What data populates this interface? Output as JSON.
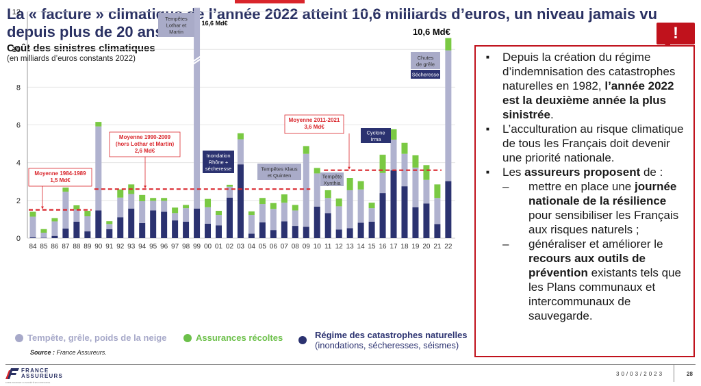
{
  "header": {
    "title": "La « facture » climatique de l’année 2022 atteint 10,6 milliards d’euros, un niveau jamais vu depuis plus de 20 ans…"
  },
  "chart_meta": {
    "subtitle": "Coût des sinistres climatiques",
    "unit": "(en milliards d’euros constants 2022)",
    "source_label": "Source :",
    "source_text": " France Assureurs."
  },
  "chart_data": {
    "type": "bar",
    "stacked": true,
    "title": "Coût des sinistres climatiques",
    "subtitle": "(en milliards d’euros constants 2022)",
    "xlabel": "",
    "ylabel": "",
    "ylim": [
      0,
      12
    ],
    "yticks": [
      0,
      2,
      4,
      6,
      8,
      10,
      12
    ],
    "grid": true,
    "legend_position": "bottom",
    "categories": [
      "84",
      "85",
      "86",
      "87",
      "88",
      "89",
      "90",
      "91",
      "92",
      "93",
      "94",
      "95",
      "96",
      "97",
      "98",
      "99",
      "00",
      "01",
      "02",
      "03",
      "04",
      "05",
      "06",
      "07",
      "08",
      "09",
      "10",
      "11",
      "12",
      "13",
      "14",
      "15",
      "16",
      "17",
      "18",
      "19",
      "20",
      "21",
      "22"
    ],
    "series": [
      {
        "name": "Régime des catastrophes naturelles (inondations, sécheresses, séismes)",
        "color": "#2b3270",
        "values": [
          0.05,
          0.02,
          0.12,
          0.51,
          0.87,
          0.36,
          1.47,
          0.48,
          1.11,
          1.57,
          0.8,
          1.47,
          1.4,
          0.94,
          0.87,
          1.57,
          0.77,
          0.68,
          2.15,
          3.91,
          0.24,
          0.84,
          0.43,
          0.89,
          0.65,
          0.6,
          1.67,
          1.33,
          0.46,
          0.53,
          0.82,
          0.87,
          2.39,
          3.6,
          2.75,
          1.64,
          1.84,
          0.75,
          3.02
        ]
      },
      {
        "name": "Tempête, grêle, poids de la neige",
        "color": "#b0b2cf",
        "values": [
          1.09,
          0.27,
          0.77,
          1.95,
          0.65,
          0.8,
          4.45,
          0.27,
          1.04,
          0.77,
          1.16,
          0.51,
          0.58,
          0.39,
          0.72,
          14.8,
          0.87,
          0.55,
          0.58,
          1.33,
          0.99,
          0.97,
          1.12,
          0.99,
          0.82,
          3.87,
          1.76,
          0.8,
          1.23,
          2.01,
          1.76,
          0.72,
          1.06,
          1.62,
          1.72,
          2.1,
          1.25,
          1.38,
          6.93
        ]
      },
      {
        "name": "Assurances récoltes",
        "color": "#7ac943",
        "values": [
          0.26,
          0.19,
          0.17,
          0.22,
          0.22,
          0.29,
          0.24,
          0.15,
          0.43,
          0.51,
          0.33,
          0.15,
          0.15,
          0.29,
          0.17,
          0.23,
          0.44,
          0.22,
          0.1,
          0.32,
          0.19,
          0.32,
          0.31,
          0.44,
          0.29,
          0.41,
          0.29,
          0.41,
          0.41,
          0.65,
          0.44,
          0.29,
          0.97,
          0.55,
          0.58,
          0.65,
          0.78,
          0.72,
          0.65
        ]
      }
    ],
    "annotations": {
      "total_1999": "16,6 Md€",
      "total_2022": "10,6 Md€",
      "averages": [
        {
          "label": "Moyenne 1984-1989",
          "value_label": "1,5 Md€",
          "value": 1.5,
          "from": "84",
          "to": "89"
        },
        {
          "label": "Moyenne 1990-2009",
          "sublabel": "(hors Lothar et Martin)",
          "value_label": "2,6 Md€",
          "value": 2.6,
          "from": "90",
          "to": "09"
        },
        {
          "label": "Moyenne 2011-2021",
          "value_label": "3,6 Md€",
          "value": 3.6,
          "from": "11",
          "to": "21"
        }
      ],
      "events": [
        {
          "text": "Tempêtes Lothar et Martin",
          "year": "99",
          "style": "storm"
        },
        {
          "text": "Inondation Rhône + sécheresse",
          "year": "03",
          "style": "catnat"
        },
        {
          "text": "Tempêtes Klaus et Quinten",
          "year": "09",
          "style": "storm"
        },
        {
          "text": "Tempête Xynthia",
          "year": "10",
          "style": "storm"
        },
        {
          "text": "Cyclone Irma",
          "year": "17",
          "style": "catnat"
        },
        {
          "text": "Chutes de grêle",
          "year": "22",
          "style": "storm"
        },
        {
          "text": "Sécheresse",
          "year": "22",
          "style": "catnat"
        }
      ]
    }
  },
  "legend": [
    {
      "label": "Tempête, grêle, poids de la neige",
      "color": "#a7a9c9"
    },
    {
      "label": "Assurances récoltes",
      "color": "#6cc04a"
    },
    {
      "label": "Régime des catastrophes naturelles",
      "sublabel": "(inondations, sécheresses, séismes)",
      "color": "#2b3270"
    }
  ],
  "alert": {
    "badge": "!",
    "bullets": [
      {
        "parts": [
          {
            "t": "Depuis la création du régime d’indemnisation des catastrophes naturelles en 1982, ",
            "b": false
          },
          {
            "t": "l’année 2022 est la deuxième année la plus sinistrée",
            "b": true
          },
          {
            "t": ".",
            "b": false
          }
        ]
      },
      {
        "parts": [
          {
            "t": "L’acculturation au risque climatique de tous les Français doit devenir une priorité nationale.",
            "b": false
          }
        ]
      },
      {
        "parts": [
          {
            "t": "Les ",
            "b": false
          },
          {
            "t": "assureurs proposent",
            "b": true
          },
          {
            "t": " de :",
            "b": false
          }
        ],
        "sub": [
          {
            "parts": [
              {
                "t": "mettre en place une ",
                "b": false
              },
              {
                "t": "journée nationale de la résilience",
                "b": true
              },
              {
                "t": " pour sensibiliser les Français aux risques naturels ;",
                "b": false
              }
            ]
          },
          {
            "parts": [
              {
                "t": "généraliser et améliorer le ",
                "b": false
              },
              {
                "t": "recours aux outils de prévention",
                "b": true
              },
              {
                "t": " existants tels que les Plans communaux et intercommunaux de sauvegarde.",
                "b": false
              }
            ]
          }
        ]
      }
    ]
  },
  "footer": {
    "logo_line1": "FRANCE",
    "logo_line2": "ASSUREURS",
    "logo_tagline": "FAIRE AVANCER LA SOCIÉTÉ EN CONFIANCE",
    "date": "30/03/2023",
    "page": "28"
  }
}
